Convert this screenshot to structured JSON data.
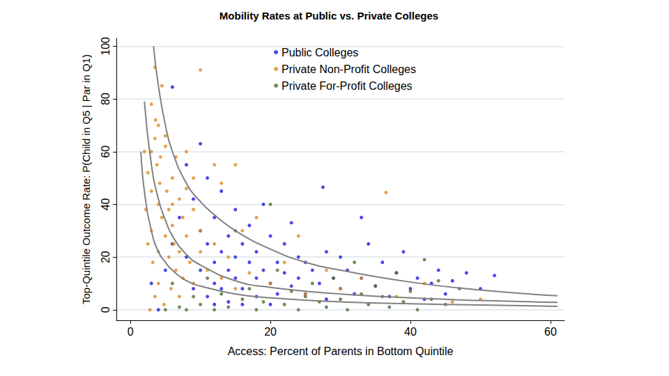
{
  "chart_data": {
    "type": "scatter",
    "title": "Mobility Rates at Public vs. Private Colleges",
    "x_label": "Access: Percent of Parents in Bottom Quintile",
    "y_label": "Top-Quintile Outcome Rate: P(Child in Q5 | Par in Q1)",
    "xlim": [
      -2,
      62
    ],
    "xticks": [
      0,
      20,
      40,
      60
    ],
    "ylim": [
      -4,
      103
    ],
    "yticks": [
      0,
      20,
      40,
      60,
      80,
      100
    ],
    "grid": true,
    "legend": "top",
    "series": [
      {
        "name": "Public Colleges",
        "color": "#1a1ae0",
        "marker": "circle",
        "x": [
          3,
          4,
          5,
          6,
          6,
          7,
          8,
          8,
          9,
          9,
          10,
          10,
          10,
          11,
          11,
          11,
          12,
          12,
          12,
          13,
          13,
          13,
          14,
          14,
          14,
          15,
          15,
          15,
          16,
          16,
          17,
          17,
          18,
          18,
          18,
          19,
          19,
          20,
          20,
          21,
          21,
          22,
          22,
          23,
          23,
          24,
          24,
          25,
          25,
          26,
          27,
          27.5,
          28,
          28,
          29,
          30,
          30,
          31,
          32,
          33,
          33,
          34,
          35,
          36,
          37,
          38,
          39,
          40,
          41,
          42,
          43,
          44,
          45,
          46,
          48,
          50,
          52,
          16,
          12,
          20
        ],
        "values": [
          10,
          0,
          15,
          84.5,
          25,
          35,
          20,
          55,
          8,
          42,
          63,
          15,
          30,
          25,
          5,
          50,
          18,
          10,
          35,
          22,
          45,
          8,
          15,
          28,
          3,
          20,
          12,
          38,
          25,
          8,
          18,
          32,
          12,
          22,
          5,
          15,
          40,
          10,
          28,
          18,
          6,
          14,
          25,
          9,
          33,
          12,
          20,
          6,
          18,
          15,
          10,
          46.5,
          22,
          4,
          12,
          8,
          20,
          15,
          6,
          35,
          12,
          25,
          9,
          18,
          5,
          14,
          22,
          8,
          12,
          4,
          10,
          15,
          6,
          11,
          14,
          8,
          13,
          2,
          2,
          2
        ]
      },
      {
        "name": "Private Non-Profit Colleges",
        "color": "#e0891e",
        "marker": "circle",
        "x": [
          2,
          2.5,
          3,
          3,
          3.5,
          3.5,
          3.8,
          4,
          4,
          4.2,
          4.5,
          4.5,
          5,
          5,
          5.2,
          5.5,
          5.5,
          6,
          6,
          6.2,
          6.5,
          6.5,
          7,
          7,
          7.5,
          7.5,
          8,
          8,
          8.5,
          9,
          9,
          10,
          10,
          10,
          11,
          12,
          12,
          13,
          13,
          14,
          15,
          15,
          16,
          17,
          18,
          20,
          22,
          24,
          25,
          28,
          30,
          33,
          36.5,
          38,
          42,
          46,
          50,
          3,
          3.2,
          4,
          2.8,
          3.5,
          4.8,
          5.8,
          2.2,
          2.5,
          3,
          3.6,
          4.3,
          5,
          4,
          6,
          8,
          9,
          7
        ],
        "values": [
          60,
          52,
          78,
          45,
          92,
          65,
          55,
          70,
          40,
          48,
          85,
          35,
          62,
          28,
          45,
          38,
          20,
          50,
          32,
          25,
          58,
          15,
          42,
          22,
          35,
          12,
          46,
          28,
          18,
          38,
          10,
          91,
          30,
          22,
          15,
          55,
          25,
          48,
          12,
          20,
          55,
          8,
          30,
          14,
          35,
          10,
          18,
          28,
          6,
          15,
          8,
          12,
          44.5,
          5,
          10,
          3,
          4,
          30,
          18,
          10,
          0,
          5,
          2,
          8,
          38,
          25,
          60,
          72,
          58,
          66,
          22,
          40,
          60,
          50,
          5
        ]
      },
      {
        "name": "Private For-Profit Colleges",
        "color": "#4e7030",
        "marker": "circle",
        "x": [
          5,
          6,
          7,
          8,
          9,
          10,
          11,
          12,
          13,
          14,
          15,
          16,
          17,
          18,
          19,
          20,
          21,
          22,
          23,
          24,
          25,
          26,
          27,
          28,
          29,
          30,
          31,
          32,
          33,
          34,
          35,
          36,
          37,
          38,
          39,
          40,
          41,
          42,
          43,
          44,
          45,
          47
        ],
        "values": [
          0,
          10,
          1,
          0,
          5,
          2,
          12,
          0,
          6,
          1,
          30,
          4,
          8,
          0,
          3,
          40,
          15,
          2,
          7,
          0,
          5,
          10,
          3,
          1,
          12,
          4,
          0,
          18,
          6,
          2,
          9,
          5,
          1,
          14,
          3,
          7,
          0,
          19,
          4,
          11,
          2,
          8
        ]
      },
      {
        "type": "line",
        "color": "#808080",
        "marker": "none",
        "line_style": "solid",
        "x": [
          3.3,
          4,
          5,
          6,
          8,
          10,
          12,
          15,
          20,
          25,
          30,
          40,
          50,
          61
        ],
        "values": [
          100,
          85,
          70,
          60,
          48,
          41,
          36,
          30,
          23,
          18,
          15,
          10.5,
          7.5,
          5.3
        ]
      },
      {
        "type": "line",
        "color": "#808080",
        "marker": "none",
        "line_style": "solid",
        "x": [
          2,
          3,
          4,
          5,
          6,
          8,
          10,
          15,
          20,
          30,
          40,
          50,
          61
        ],
        "values": [
          79,
          55,
          42,
          34,
          28,
          21,
          17,
          11,
          8.5,
          6,
          4.5,
          3.5,
          2.8
        ]
      },
      {
        "type": "line",
        "color": "#808080",
        "marker": "none",
        "line_style": "solid",
        "x": [
          1.5,
          2,
          3,
          4,
          5,
          6,
          8,
          10,
          15,
          20,
          30,
          40,
          50,
          61
        ],
        "values": [
          60,
          45,
          30,
          22,
          18,
          15,
          11,
          9,
          6,
          4.5,
          3,
          2.3,
          1.8,
          1.3
        ]
      }
    ]
  }
}
